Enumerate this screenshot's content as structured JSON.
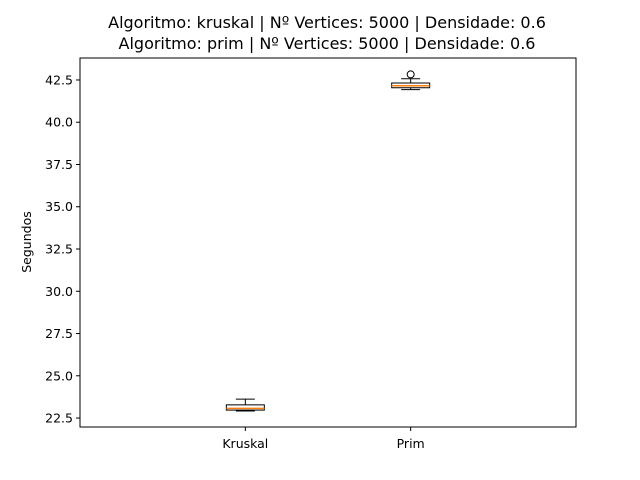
{
  "chart_data": {
    "type": "box",
    "title_lines": [
      "Algoritmo: kruskal | Nº Vertices: 5000 | Densidade: 0.6",
      "Algoritmo: prim | Nº Vertices: 5000 | Densidade: 0.6"
    ],
    "xlabel": "",
    "ylabel": "Segundos",
    "ylim": [
      21.97,
      43.8
    ],
    "yticks": [
      22.5,
      25.0,
      27.5,
      30.0,
      32.5,
      35.0,
      37.5,
      40.0,
      42.5
    ],
    "ytick_labels": [
      "22.5",
      "25.0",
      "27.5",
      "30.0",
      "32.5",
      "35.0",
      "37.5",
      "40.0",
      "42.5"
    ],
    "grid": false,
    "colors": {
      "box": "#000000",
      "median": "#ff7f0e",
      "background": "#ffffff"
    },
    "series": [
      {
        "name": "Kruskal",
        "whisker_low": 22.92,
        "q1": 22.97,
        "median": 23.07,
        "q3": 23.28,
        "whisker_high": 23.62,
        "outliers": []
      },
      {
        "name": "Prim",
        "whisker_low": 41.93,
        "q1": 42.04,
        "median": 42.16,
        "q3": 42.32,
        "whisker_high": 42.57,
        "outliers": [
          42.83
        ]
      }
    ]
  }
}
